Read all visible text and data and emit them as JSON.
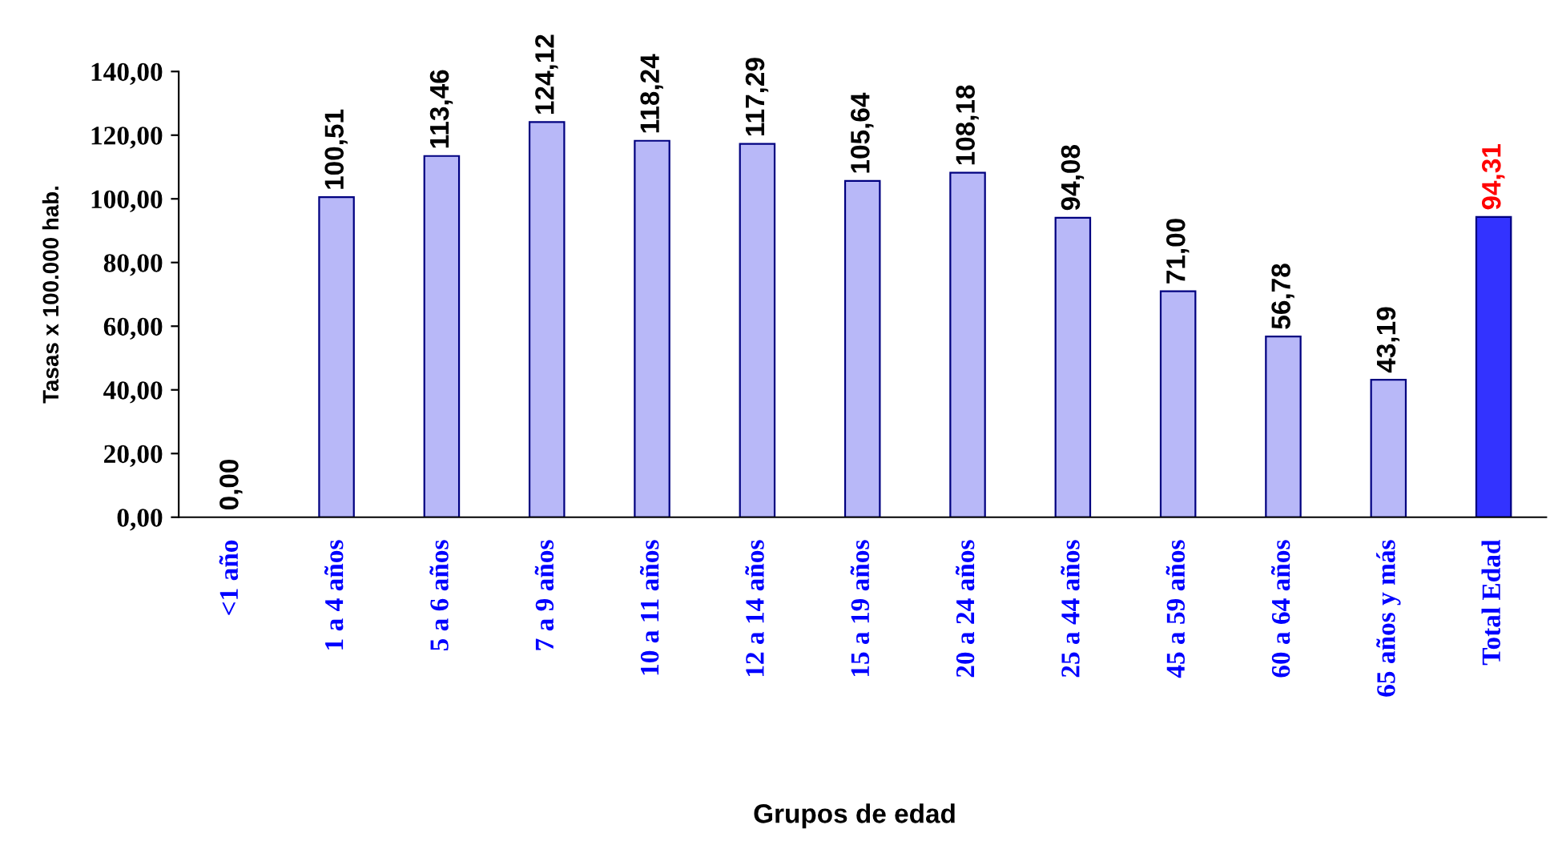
{
  "chart_data": {
    "type": "bar",
    "xlabel": "Grupos de edad",
    "ylabel": "Tasas x 100.000 hab.",
    "categories": [
      "<1 año",
      "1 a 4 años",
      "5 a 6 años",
      "7 a 9 años",
      "10 a 11 años",
      "12 a 14 años",
      "15 a 19 años",
      "20 a 24 años",
      "25 a 44 años",
      "45 a 59 años",
      "60 a 64 años",
      "65 años y más",
      "Total Edad"
    ],
    "values": [
      0,
      100.51,
      113.46,
      124.12,
      118.24,
      117.29,
      105.64,
      108.18,
      94.08,
      71.0,
      56.78,
      43.19,
      94.31
    ],
    "value_labels": [
      "0,00",
      "100,51",
      "113,46",
      "124,12",
      "118,24",
      "117,29",
      "105,64",
      "108,18",
      "94,08",
      "71,00",
      "56,78",
      "43,19",
      "94,31"
    ],
    "colors": [
      "#b8b8f8",
      "#b8b8f8",
      "#b8b8f8",
      "#b8b8f8",
      "#b8b8f8",
      "#b8b8f8",
      "#b8b8f8",
      "#b8b8f8",
      "#b8b8f8",
      "#b8b8f8",
      "#b8b8f8",
      "#b8b8f8",
      "#3333ff"
    ],
    "ylim": [
      0,
      140
    ],
    "yticks": [
      {
        "value": 0,
        "label": "0,00"
      },
      {
        "value": 20,
        "label": "20,00"
      },
      {
        "value": 40,
        "label": "40,00"
      },
      {
        "value": 60,
        "label": "60,00"
      },
      {
        "value": 80,
        "label": "80,00"
      },
      {
        "value": 100,
        "label": "100,00"
      },
      {
        "value": 120,
        "label": "120,00"
      },
      {
        "value": 140,
        "label": "140,00"
      }
    ],
    "grid": false,
    "legend": false
  }
}
